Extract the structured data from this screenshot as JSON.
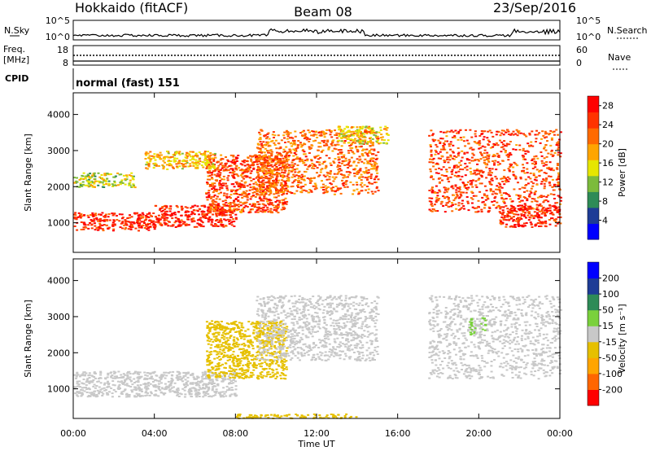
{
  "header": {
    "title_left": "Hokkaido (fitACF)",
    "title_center": "Beam 08",
    "title_right": "23/Sep/2016"
  },
  "noise_panel": {
    "left_label": "N.Sky",
    "right_label": "N.Search",
    "left_ticks": [
      "10^5",
      "10^0"
    ],
    "right_ticks": [
      "10^5",
      "10^0"
    ]
  },
  "freq_panel": {
    "left_label_1": "Freq.",
    "left_label_2": "[MHz]",
    "right_label": "Nave",
    "left_ticks": [
      "18",
      "8"
    ],
    "right_ticks": [
      "60",
      "0"
    ]
  },
  "cpid": {
    "label": "CPID",
    "value": "normal (fast) 151"
  },
  "colors": {
    "power_scale": [
      "#0000ff",
      "#1e3c96",
      "#2e8b57",
      "#7cbb3c",
      "#e6e600",
      "#ffa500",
      "#ff6a00",
      "#ff3300",
      "#ff0000"
    ],
    "velocity_scale": [
      "#ff0000",
      "#ff6600",
      "#ffa500",
      "#e6c000",
      "#c8c8c8",
      "#7ad13c",
      "#2e8b57",
      "#1e3c96",
      "#0000ff"
    ],
    "ground_scatter": "#c8c8c8"
  },
  "chart_data": [
    {
      "type": "heatmap",
      "title": "",
      "xlabel": "Time UT",
      "ylabel": "Slant Range [km]",
      "x_tick_labels": [
        "00:00",
        "04:00",
        "08:00",
        "12:00",
        "16:00",
        "20:00",
        "00:00"
      ],
      "y_tick_labels": [
        "1000",
        "2000",
        "3000",
        "4000"
      ],
      "xlim_hours": [
        0,
        24
      ],
      "ylim_km": [
        180,
        4600
      ],
      "colorbar_label": "Power [dB]",
      "colorbar_ticks": [
        "4",
        "8",
        "12",
        "16",
        "20",
        "24",
        "28"
      ],
      "colorbar_range": [
        0,
        30
      ],
      "scatter_regions": [
        {
          "t": [
            0,
            4
          ],
          "r": [
            800,
            1300
          ],
          "value_db": 26
        },
        {
          "t": [
            4,
            8
          ],
          "r": [
            900,
            1500
          ],
          "value_db": 27
        },
        {
          "t": [
            6.5,
            10.5
          ],
          "r": [
            1300,
            2900
          ],
          "value_db": 24
        },
        {
          "t": [
            9,
            15
          ],
          "r": [
            1800,
            3600
          ],
          "value_db": 22
        },
        {
          "t": [
            13,
            15.5
          ],
          "r": [
            3200,
            3700
          ],
          "value_db": 16
        },
        {
          "t": [
            17.5,
            24
          ],
          "r": [
            1300,
            3600
          ],
          "value_db": 24
        },
        {
          "t": [
            21,
            24
          ],
          "r": [
            900,
            1500
          ],
          "value_db": 26
        },
        {
          "t": [
            0,
            3
          ],
          "r": [
            2000,
            2400
          ],
          "value_db": 14
        },
        {
          "t": [
            3.5,
            7
          ],
          "r": [
            2500,
            3000
          ],
          "value_db": 18
        }
      ]
    },
    {
      "type": "heatmap",
      "title": "",
      "xlabel": "Time UT",
      "ylabel": "Slant Range [km]",
      "x_tick_labels": [
        "00:00",
        "04:00",
        "08:00",
        "12:00",
        "16:00",
        "20:00",
        "00:00"
      ],
      "y_tick_labels": [
        "1000",
        "2000",
        "3000",
        "4000"
      ],
      "xlim_hours": [
        0,
        24
      ],
      "ylim_km": [
        180,
        4600
      ],
      "colorbar_label": "Velocity [m s⁻¹]",
      "colorbar_ticks": [
        "200",
        "100",
        "50",
        "15",
        "-15",
        "-50",
        "-100",
        "-200"
      ],
      "colorbar_range": [
        -250,
        250
      ],
      "scatter_regions": [
        {
          "t": [
            0,
            8
          ],
          "r": [
            800,
            1500
          ],
          "value_ms": 0
        },
        {
          "t": [
            6.5,
            10.5
          ],
          "r": [
            1300,
            2900
          ],
          "value_ms": -60
        },
        {
          "t": [
            9,
            15
          ],
          "r": [
            1800,
            3600
          ],
          "value_ms": 0
        },
        {
          "t": [
            17.5,
            24
          ],
          "r": [
            1300,
            3600
          ],
          "value_ms": 0
        },
        {
          "t": [
            8,
            14
          ],
          "r": [
            200,
            320
          ],
          "value_ms": -60
        },
        {
          "t": [
            19.5,
            20.3
          ],
          "r": [
            2500,
            3000
          ],
          "value_ms": 30
        }
      ]
    }
  ]
}
